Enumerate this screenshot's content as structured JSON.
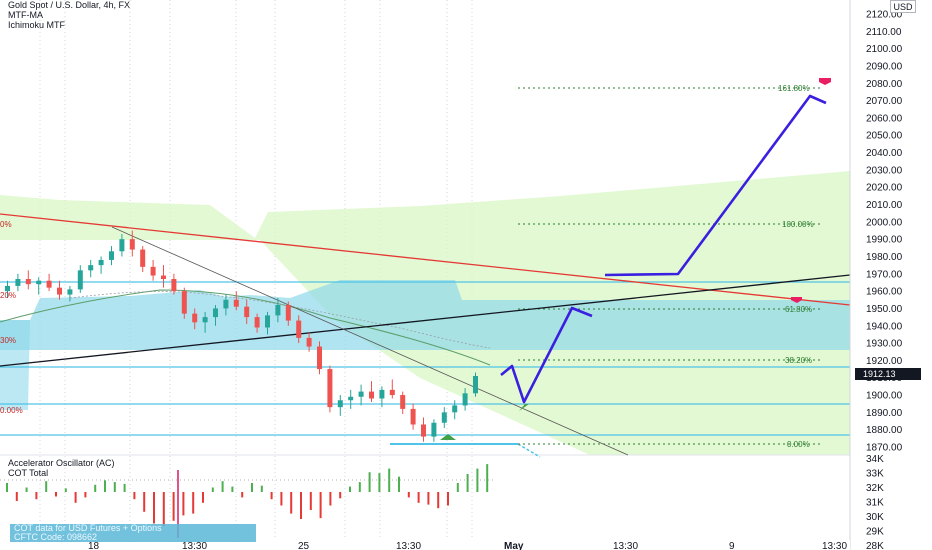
{
  "legend": {
    "symbol": "Gold Spot / U.S. Dollar, 4h, FX",
    "indicator1": "MTF-MA",
    "indicator2": "Ichimoku MTF"
  },
  "oscillator_legend": {
    "line1": "Accelerator Oscillator (AC)",
    "line2": "COT Total"
  },
  "cot_note": {
    "line1": "COT data for USD Futures + Options",
    "line2": "CFTC Code: 098662"
  },
  "price_axis": {
    "unit": "USD",
    "labels": [
      "2120.00",
      "2110.00",
      "2100.00",
      "2090.00",
      "2080.00",
      "2070.00",
      "2060.00",
      "2050.00",
      "2040.00",
      "2030.00",
      "2020.00",
      "2010.00",
      "2000.00",
      "1990.00",
      "1980.00",
      "1970.00",
      "1960.00",
      "1950.00",
      "1940.00",
      "1930.00",
      "1920.00",
      "1910.00",
      "1900.00",
      "1890.00",
      "1880.00",
      "1870.00"
    ],
    "current_price": "1912.13"
  },
  "osc_axis": {
    "labels": [
      "34K",
      "33K",
      "32K",
      "31K",
      "30K",
      "29K",
      "28K"
    ]
  },
  "time_axis": {
    "labels": [
      "18",
      "13:30",
      "25",
      "13:30",
      "May",
      "13:30",
      "9",
      "13:30"
    ]
  },
  "fib_levels": {
    "labels": [
      "161.80%",
      "100.00%",
      "61.80%",
      "38.20%",
      "0.00%"
    ]
  },
  "left_edge_labels": [
    "0%",
    "20%",
    "30%",
    "0.00%"
  ],
  "colors": {
    "bull": "#26a69a",
    "bear": "#ef5350",
    "projection": "#3a1fe0",
    "trend_red": "#e53935",
    "trend_black": "#131722",
    "ichimoku_green": "#d9f7c4",
    "ichimoku_blue": "#8ed9ea",
    "level_line": "#4fc3e8",
    "fib": "#2e7d32"
  },
  "chart_data": {
    "type": "candlestick",
    "title": "Gold Spot / U.S. Dollar, 4h, FX",
    "ylabel": "USD",
    "ylim": [
      1865,
      2125
    ],
    "fib_retracement": [
      {
        "label": "161.80%",
        "value": 2077
      },
      {
        "label": "100.00%",
        "value": 2001
      },
      {
        "label": "61.80%",
        "value": 1953
      },
      {
        "label": "38.20%",
        "value": 1922
      },
      {
        "label": "0.00%",
        "value": 1873
      }
    ],
    "horizontal_levels": [
      1966,
      1918,
      1895,
      1877
    ],
    "projection_path": [
      {
        "x": 0,
        "y": 1917
      },
      {
        "x": 1,
        "y": 1919
      },
      {
        "x": 2,
        "y": 1894
      },
      {
        "x": 3,
        "y": 1952
      },
      {
        "x": 4,
        "y": 1948
      }
    ],
    "projection_path_2": [
      {
        "x": 0,
        "y": 1967
      },
      {
        "x": 1,
        "y": 1967
      },
      {
        "x": 2,
        "y": 2072
      },
      {
        "x": 3,
        "y": 2067
      }
    ],
    "candles": [
      {
        "o": 1960,
        "h": 1966,
        "l": 1956,
        "c": 1963
      },
      {
        "o": 1963,
        "h": 1970,
        "l": 1960,
        "c": 1967
      },
      {
        "o": 1967,
        "h": 1972,
        "l": 1961,
        "c": 1964
      },
      {
        "o": 1964,
        "h": 1968,
        "l": 1958,
        "c": 1966
      },
      {
        "o": 1966,
        "h": 1970,
        "l": 1960,
        "c": 1962
      },
      {
        "o": 1962,
        "h": 1966,
        "l": 1955,
        "c": 1958
      },
      {
        "o": 1958,
        "h": 1963,
        "l": 1954,
        "c": 1961
      },
      {
        "o": 1961,
        "h": 1975,
        "l": 1959,
        "c": 1972
      },
      {
        "o": 1972,
        "h": 1978,
        "l": 1968,
        "c": 1975
      },
      {
        "o": 1975,
        "h": 1980,
        "l": 1970,
        "c": 1978
      },
      {
        "o": 1978,
        "h": 1986,
        "l": 1975,
        "c": 1983
      },
      {
        "o": 1983,
        "h": 1993,
        "l": 1980,
        "c": 1990
      },
      {
        "o": 1990,
        "h": 1995,
        "l": 1980,
        "c": 1984
      },
      {
        "o": 1984,
        "h": 1986,
        "l": 1971,
        "c": 1974
      },
      {
        "o": 1974,
        "h": 1978,
        "l": 1966,
        "c": 1969
      },
      {
        "o": 1969,
        "h": 1975,
        "l": 1962,
        "c": 1967
      },
      {
        "o": 1967,
        "h": 1970,
        "l": 1958,
        "c": 1960
      },
      {
        "o": 1960,
        "h": 1962,
        "l": 1944,
        "c": 1947
      },
      {
        "o": 1947,
        "h": 1950,
        "l": 1938,
        "c": 1942
      },
      {
        "o": 1942,
        "h": 1948,
        "l": 1936,
        "c": 1945
      },
      {
        "o": 1945,
        "h": 1952,
        "l": 1940,
        "c": 1950
      },
      {
        "o": 1950,
        "h": 1958,
        "l": 1946,
        "c": 1955
      },
      {
        "o": 1955,
        "h": 1960,
        "l": 1949,
        "c": 1951
      },
      {
        "o": 1951,
        "h": 1955,
        "l": 1941,
        "c": 1945
      },
      {
        "o": 1945,
        "h": 1947,
        "l": 1936,
        "c": 1939
      },
      {
        "o": 1939,
        "h": 1948,
        "l": 1935,
        "c": 1946
      },
      {
        "o": 1946,
        "h": 1956,
        "l": 1942,
        "c": 1952
      },
      {
        "o": 1952,
        "h": 1954,
        "l": 1940,
        "c": 1943
      },
      {
        "o": 1943,
        "h": 1946,
        "l": 1930,
        "c": 1933
      },
      {
        "o": 1933,
        "h": 1936,
        "l": 1925,
        "c": 1928
      },
      {
        "o": 1928,
        "h": 1931,
        "l": 1912,
        "c": 1915
      },
      {
        "o": 1915,
        "h": 1917,
        "l": 1890,
        "c": 1893
      },
      {
        "o": 1893,
        "h": 1900,
        "l": 1888,
        "c": 1897
      },
      {
        "o": 1897,
        "h": 1903,
        "l": 1892,
        "c": 1899
      },
      {
        "o": 1899,
        "h": 1906,
        "l": 1894,
        "c": 1902
      },
      {
        "o": 1902,
        "h": 1908,
        "l": 1896,
        "c": 1898
      },
      {
        "o": 1898,
        "h": 1905,
        "l": 1893,
        "c": 1903
      },
      {
        "o": 1903,
        "h": 1909,
        "l": 1898,
        "c": 1900
      },
      {
        "o": 1900,
        "h": 1902,
        "l": 1889,
        "c": 1892
      },
      {
        "o": 1892,
        "h": 1895,
        "l": 1880,
        "c": 1883
      },
      {
        "o": 1883,
        "h": 1887,
        "l": 1873,
        "c": 1876
      },
      {
        "o": 1876,
        "h": 1886,
        "l": 1873,
        "c": 1884
      },
      {
        "o": 1884,
        "h": 1893,
        "l": 1881,
        "c": 1890
      },
      {
        "o": 1890,
        "h": 1897,
        "l": 1886,
        "c": 1894
      },
      {
        "o": 1894,
        "h": 1904,
        "l": 1891,
        "c": 1901
      },
      {
        "o": 1901,
        "h": 1913,
        "l": 1899,
        "c": 1911
      }
    ],
    "oscillator": [
      1,
      -1,
      0.5,
      -0.8,
      1.2,
      -0.5,
      0.4,
      -1.2,
      -0.6,
      0.8,
      1.3,
      1.1,
      0.9,
      -0.8,
      -2.2,
      -3.5,
      -3.8,
      -3.2,
      -2.6,
      -2.4,
      -1.2,
      0.5,
      1.2,
      0.6,
      -0.6,
      1.0,
      0.7,
      -0.8,
      -1.5,
      -2.4,
      -3.0,
      -2.0,
      -2.9,
      -1.5,
      -0.7,
      0.6,
      1.1,
      2.2,
      2.1,
      2.6,
      1.7,
      -0.6,
      -1.2,
      -1.4,
      -1.8,
      -1.5,
      1.0,
      2.0,
      2.6,
      3.1
    ]
  }
}
